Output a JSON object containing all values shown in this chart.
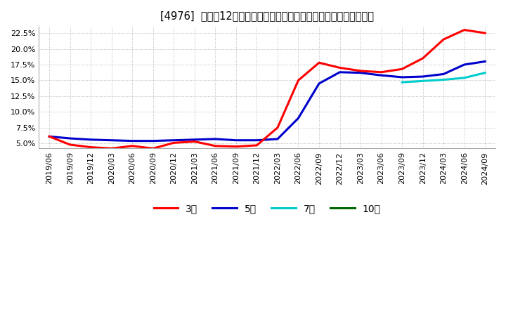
{
  "title": "[4976]  売上高12か月移動合計の対前年同期増減率の標準偏差の推移",
  "ylim": [
    4.2,
    23.5
  ],
  "yticks": [
    5.0,
    7.5,
    10.0,
    12.5,
    15.0,
    17.5,
    20.0,
    22.5
  ],
  "legend": [
    "3年",
    "5年",
    "7年",
    "10年"
  ],
  "colors": [
    "#ff0000",
    "#0000cc",
    "#00cccc",
    "#006600"
  ],
  "x_labels": [
    "2019/06",
    "2019/09",
    "2019/12",
    "2020/03",
    "2020/06",
    "2020/09",
    "2020/12",
    "2021/03",
    "2021/06",
    "2021/09",
    "2021/12",
    "2022/03",
    "2022/06",
    "2022/09",
    "2022/12",
    "2023/03",
    "2023/06",
    "2023/09",
    "2023/12",
    "2024/03",
    "2024/06",
    "2024/09"
  ],
  "series_3y": [
    6.1,
    4.8,
    4.4,
    4.2,
    4.6,
    4.2,
    5.1,
    5.3,
    4.6,
    4.5,
    4.7,
    7.5,
    15.0,
    17.8,
    17.0,
    16.5,
    16.3,
    16.8,
    18.5,
    21.5,
    23.0,
    22.5
  ],
  "series_5y": [
    6.1,
    5.8,
    5.6,
    5.5,
    5.4,
    5.4,
    5.5,
    5.6,
    5.7,
    5.5,
    5.5,
    5.7,
    9.0,
    14.5,
    16.3,
    16.2,
    15.8,
    15.5,
    15.6,
    16.0,
    17.5,
    18.0
  ],
  "series_7y": [
    null,
    null,
    null,
    null,
    null,
    null,
    null,
    null,
    null,
    null,
    null,
    null,
    null,
    null,
    null,
    null,
    null,
    14.7,
    14.9,
    15.1,
    15.4,
    16.2
  ],
  "series_10y": [
    null,
    null,
    null,
    null,
    null,
    null,
    null,
    null,
    null,
    null,
    null,
    null,
    null,
    null,
    null,
    null,
    null,
    null,
    null,
    null,
    null,
    null
  ],
  "background_color": "#ffffff",
  "title_fontsize": 10.5,
  "tick_fontsize": 8
}
